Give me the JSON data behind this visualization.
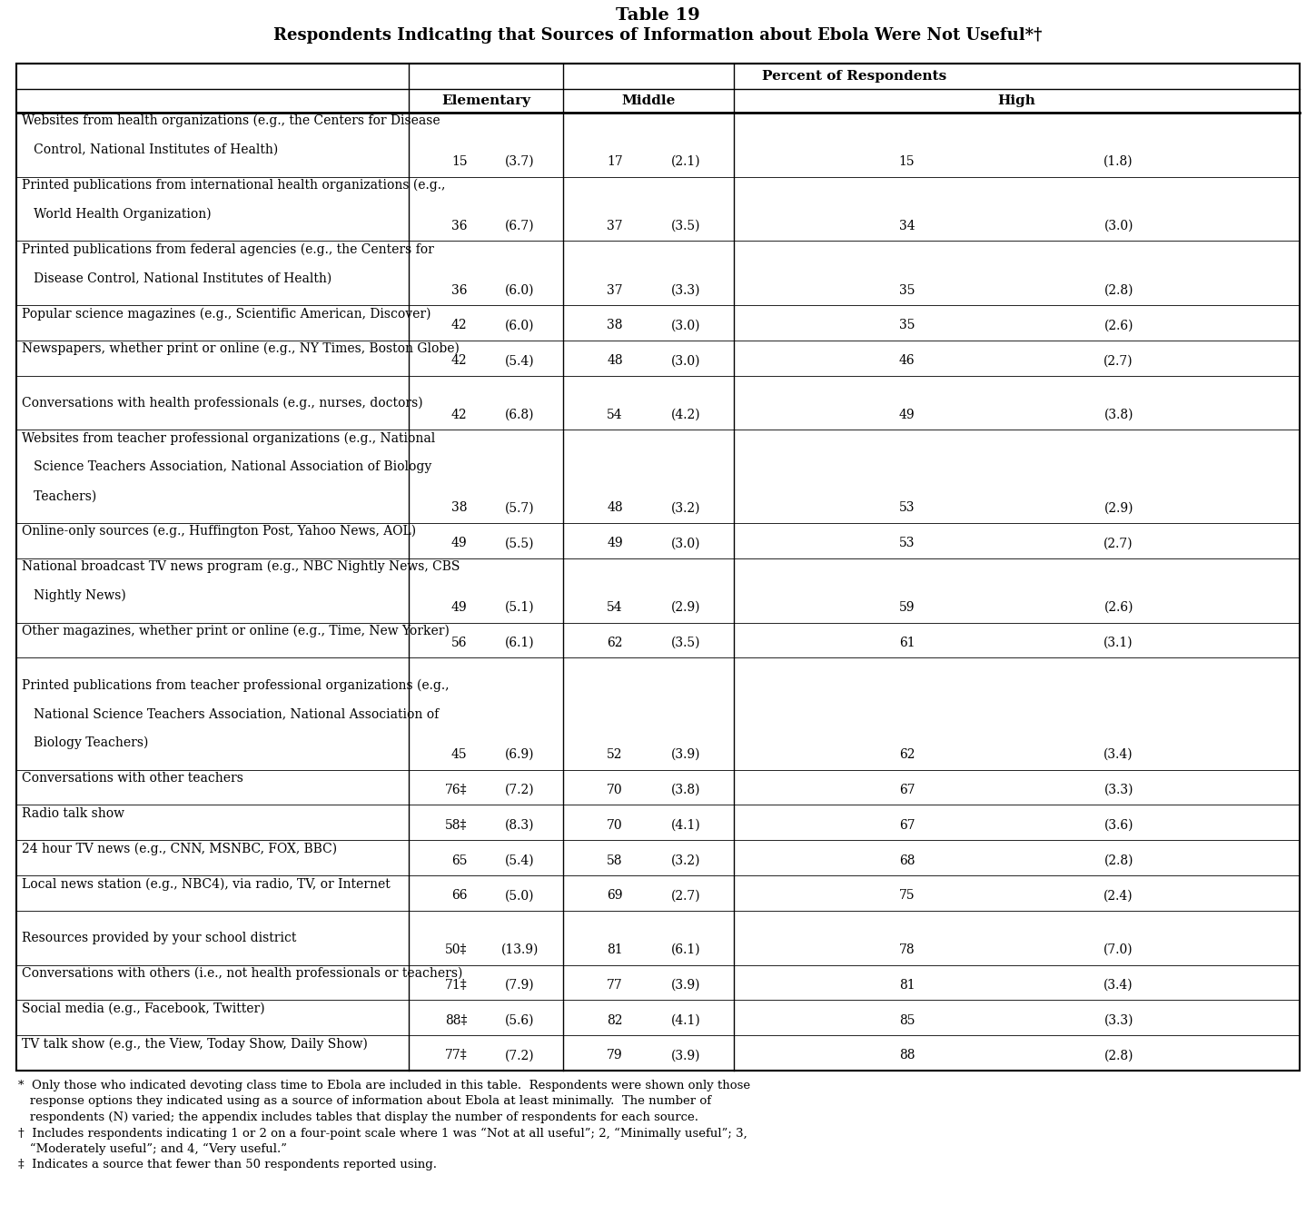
{
  "title_line1": "Table 19",
  "title_line2": "Respondents Indicating that Sources of Information about Ebola Were Not Useful*†",
  "header_group": "Percent of Respondents",
  "col_headers": [
    "Elementary",
    "Middle",
    "High"
  ],
  "rows": [
    {
      "label_lines": [
        "Websites from health organizations (e.g., the Centers for Disease",
        "   Control, National Institutes of Health)"
      ],
      "elem_n": "15",
      "elem_se": "(3.7)",
      "mid_n": "17",
      "mid_se": "(2.1)",
      "high_n": "15",
      "high_se": "(1.8)",
      "blank_before": false,
      "data_line": 1
    },
    {
      "label_lines": [
        "Printed publications from international health organizations (e.g.,",
        "   World Health Organization)"
      ],
      "elem_n": "36",
      "elem_se": "(6.7)",
      "mid_n": "37",
      "mid_se": "(3.5)",
      "high_n": "34",
      "high_se": "(3.0)",
      "blank_before": false,
      "data_line": 1
    },
    {
      "label_lines": [
        "Printed publications from federal agencies (e.g., the Centers for",
        "   Disease Control, National Institutes of Health)"
      ],
      "elem_n": "36",
      "elem_se": "(6.0)",
      "mid_n": "37",
      "mid_se": "(3.3)",
      "high_n": "35",
      "high_se": "(2.8)",
      "blank_before": false,
      "data_line": 1
    },
    {
      "label_lines": [
        "Popular science magazines (e.g., Scientific American, Discover)"
      ],
      "elem_n": "42",
      "elem_se": "(6.0)",
      "mid_n": "38",
      "mid_se": "(3.0)",
      "high_n": "35",
      "high_se": "(2.6)",
      "blank_before": false,
      "data_line": 0
    },
    {
      "label_lines": [
        "Newspapers, whether print or online (e.g., NY Times, Boston Globe)"
      ],
      "elem_n": "42",
      "elem_se": "(5.4)",
      "mid_n": "48",
      "mid_se": "(3.0)",
      "high_n": "46",
      "high_se": "(2.7)",
      "blank_before": false,
      "data_line": 0
    },
    {
      "label_lines": [
        "Conversations with health professionals (e.g., nurses, doctors)"
      ],
      "elem_n": "42",
      "elem_se": "(6.8)",
      "mid_n": "54",
      "mid_se": "(4.2)",
      "high_n": "49",
      "high_se": "(3.8)",
      "blank_before": true,
      "data_line": 0
    },
    {
      "label_lines": [
        "Websites from teacher professional organizations (e.g., National",
        "   Science Teachers Association, National Association of Biology",
        "   Teachers)"
      ],
      "elem_n": "38",
      "elem_se": "(5.7)",
      "mid_n": "48",
      "mid_se": "(3.2)",
      "high_n": "53",
      "high_se": "(2.9)",
      "blank_before": false,
      "data_line": 2
    },
    {
      "label_lines": [
        "Online-only sources (e.g., Huffington Post, Yahoo News, AOL)"
      ],
      "elem_n": "49",
      "elem_se": "(5.5)",
      "mid_n": "49",
      "mid_se": "(3.0)",
      "high_n": "53",
      "high_se": "(2.7)",
      "blank_before": false,
      "data_line": 0
    },
    {
      "label_lines": [
        "National broadcast TV news program (e.g., NBC Nightly News, CBS",
        "   Nightly News)"
      ],
      "elem_n": "49",
      "elem_se": "(5.1)",
      "mid_n": "54",
      "mid_se": "(2.9)",
      "high_n": "59",
      "high_se": "(2.6)",
      "blank_before": false,
      "data_line": 1
    },
    {
      "label_lines": [
        "Other magazines, whether print or online (e.g., Time, New Yorker)"
      ],
      "elem_n": "56",
      "elem_se": "(6.1)",
      "mid_n": "62",
      "mid_se": "(3.5)",
      "high_n": "61",
      "high_se": "(3.1)",
      "blank_before": false,
      "data_line": 0
    },
    {
      "label_lines": [
        "Printed publications from teacher professional organizations (e.g.,",
        "   National Science Teachers Association, National Association of",
        "   Biology Teachers)"
      ],
      "elem_n": "45",
      "elem_se": "(6.9)",
      "mid_n": "52",
      "mid_se": "(3.9)",
      "high_n": "62",
      "high_se": "(3.4)",
      "blank_before": true,
      "data_line": 2
    },
    {
      "label_lines": [
        "Conversations with other teachers"
      ],
      "elem_n": "76‡",
      "elem_se": "(7.2)",
      "mid_n": "70",
      "mid_se": "(3.8)",
      "high_n": "67",
      "high_se": "(3.3)",
      "blank_before": false,
      "data_line": 0
    },
    {
      "label_lines": [
        "Radio talk show"
      ],
      "elem_n": "58‡",
      "elem_se": "(8.3)",
      "mid_n": "70",
      "mid_se": "(4.1)",
      "high_n": "67",
      "high_se": "(3.6)",
      "blank_before": false,
      "data_line": 0
    },
    {
      "label_lines": [
        "24 hour TV news (e.g., CNN, MSNBC, FOX, BBC)"
      ],
      "elem_n": "65",
      "elem_se": "(5.4)",
      "mid_n": "58",
      "mid_se": "(3.2)",
      "high_n": "68",
      "high_se": "(2.8)",
      "blank_before": false,
      "data_line": 0
    },
    {
      "label_lines": [
        "Local news station (e.g., NBC4), via radio, TV, or Internet"
      ],
      "elem_n": "66",
      "elem_se": "(5.0)",
      "mid_n": "69",
      "mid_se": "(2.7)",
      "high_n": "75",
      "high_se": "(2.4)",
      "blank_before": false,
      "data_line": 0
    },
    {
      "label_lines": [
        "Resources provided by your school district"
      ],
      "elem_n": "50‡",
      "elem_se": "(13.9)",
      "mid_n": "81",
      "mid_se": "(6.1)",
      "high_n": "78",
      "high_se": "(7.0)",
      "blank_before": true,
      "data_line": 0
    },
    {
      "label_lines": [
        "Conversations with others (i.e., not health professionals or teachers)"
      ],
      "elem_n": "71‡",
      "elem_se": "(7.9)",
      "mid_n": "77",
      "mid_se": "(3.9)",
      "high_n": "81",
      "high_se": "(3.4)",
      "blank_before": false,
      "data_line": 0
    },
    {
      "label_lines": [
        "Social media (e.g., Facebook, Twitter)"
      ],
      "elem_n": "88‡",
      "elem_se": "(5.6)",
      "mid_n": "82",
      "mid_se": "(4.1)",
      "high_n": "85",
      "high_se": "(3.3)",
      "blank_before": false,
      "data_line": 0
    },
    {
      "label_lines": [
        "TV talk show (e.g., the View, Today Show, Daily Show)"
      ],
      "elem_n": "77‡",
      "elem_se": "(7.2)",
      "mid_n": "79",
      "mid_se": "(3.9)",
      "high_n": "88",
      "high_se": "(2.8)",
      "blank_before": false,
      "data_line": 0
    }
  ],
  "footnote_lines": [
    {
      "symbol": "*",
      "indent": "  ",
      "text": "Only those who indicated devoting class time to Ebola are included in this table.  Respondents were shown only those"
    },
    {
      "symbol": "",
      "indent": "   ",
      "text": "response options they indicated using as a source of information about Ebola at least minimally.  The number of"
    },
    {
      "symbol": "",
      "indent": "   ",
      "text": "respondents (N) varied; the appendix includes tables that display the number of respondents for each source."
    },
    {
      "symbol": "†",
      "indent": "  ",
      "text": "Includes respondents indicating 1 or 2 on a four-point scale where 1 was “Not at all useful”; 2, “Minimally useful”; 3,"
    },
    {
      "symbol": "",
      "indent": "   ",
      "text": "“Moderately useful”; and 4, “Very useful.”"
    },
    {
      "symbol": "‡",
      "indent": "  ",
      "text": "Indicates a source that fewer than 50 respondents reported using."
    }
  ],
  "bg_color": "#ffffff",
  "border_color": "#000000",
  "text_color": "#000000",
  "figw": 14.49,
  "figh": 13.27,
  "dpi": 100
}
